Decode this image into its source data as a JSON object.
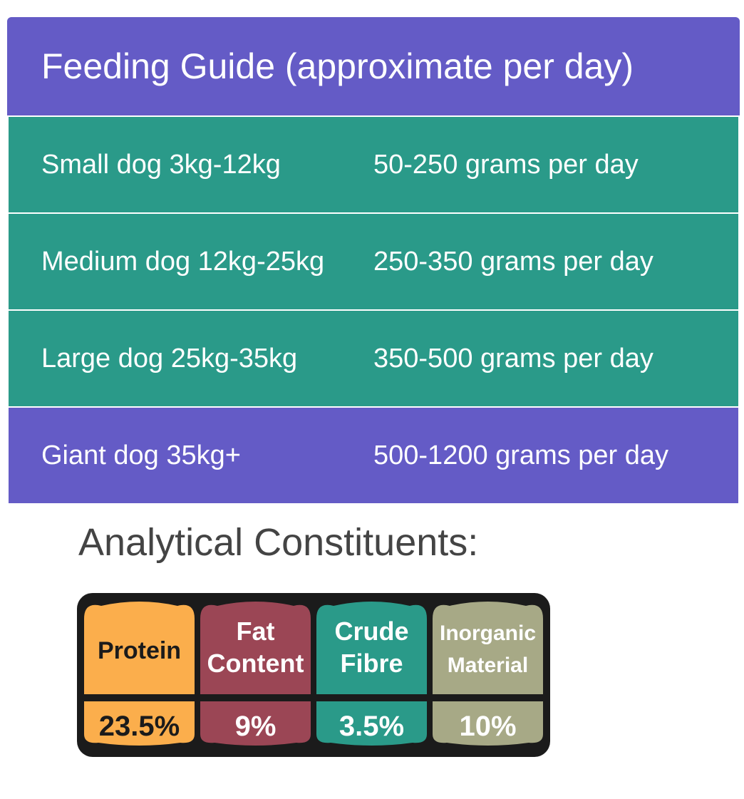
{
  "feeding_guide": {
    "title": "Feeding Guide (approximate per day)",
    "rows": [
      {
        "size": "Small dog 3kg-12kg",
        "amount": "50-250 grams per day"
      },
      {
        "size": "Medium dog 12kg-25kg",
        "amount": "250-350 grams per day"
      },
      {
        "size": "Large dog 25kg-35kg",
        "amount": "350-500 grams per day"
      },
      {
        "size": "Giant dog 35kg+",
        "amount": "500-1200 grams per day"
      }
    ],
    "colors": {
      "header": "#645bc6",
      "row": "#2a9a89",
      "last_row": "#645bc6"
    }
  },
  "analytical": {
    "title": "Analytical Constituents:",
    "constituents": [
      {
        "line1": "Protein",
        "line2": "",
        "value": "23.5%",
        "color": "#fbae4c"
      },
      {
        "line1": "Fat",
        "line2": "Content",
        "value": "9%",
        "color": "#9b4655"
      },
      {
        "line1": "Crude",
        "line2": "Fibre",
        "value": "3.5%",
        "color": "#2a9a89"
      },
      {
        "line1": "Inorganic",
        "line2": "Material",
        "value": "10%",
        "color": "#a7a986"
      }
    ]
  }
}
